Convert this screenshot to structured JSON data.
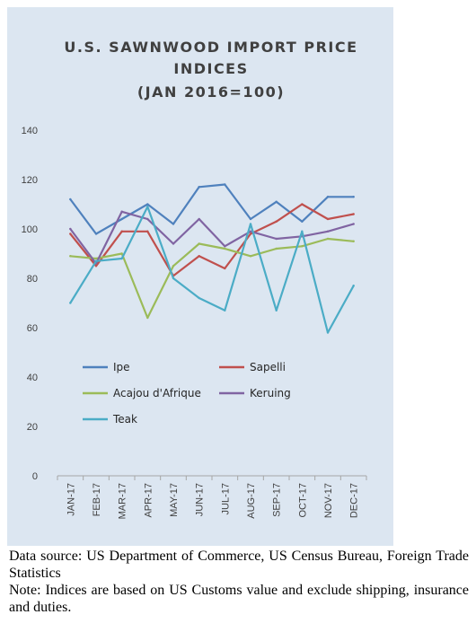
{
  "chart_data": {
    "type": "line",
    "title_lines": [
      "U.S. SAWNWOOD IMPORT PRICE",
      "INDICES",
      "(JAN 2016=100)"
    ],
    "categories": [
      "JAN-17",
      "FEB-17",
      "MAR-17",
      "APR-17",
      "MAY-17",
      "JUN-17",
      "JUL-17",
      "AUG-17",
      "SEP-17",
      "OCT-17",
      "NOV-17",
      "DEC-17"
    ],
    "ylim": [
      0,
      140
    ],
    "yticks": [
      0,
      20,
      40,
      60,
      80,
      100,
      120,
      140
    ],
    "grid": false,
    "legend_position": "lower-left inside plot",
    "series": [
      {
        "name": "Ipe",
        "color": "#4f81bd",
        "values": [
          112,
          98,
          104,
          110,
          102,
          117,
          118,
          104,
          111,
          103,
          113,
          113
        ]
      },
      {
        "name": "Sapelli",
        "color": "#c0504d",
        "values": [
          98,
          85,
          99,
          99,
          81,
          89,
          84,
          98,
          103,
          110,
          104,
          106
        ]
      },
      {
        "name": "Acajou d'Afrique",
        "color": "#9bbb59",
        "values": [
          89,
          88,
          90,
          64,
          85,
          94,
          92,
          89,
          92,
          93,
          96,
          95
        ]
      },
      {
        "name": "Keruing",
        "color": "#8064a2",
        "values": [
          100,
          86,
          107,
          104,
          94,
          104,
          93,
          99,
          96,
          97,
          99,
          102
        ]
      },
      {
        "name": "Teak",
        "color": "#4bacc6",
        "values": [
          70,
          87,
          88,
          109,
          80,
          72,
          67,
          102,
          67,
          99,
          58,
          77
        ]
      }
    ]
  },
  "notes": {
    "source": "Data source: US Department of Commerce, US Census Bureau, Foreign Trade Statistics",
    "note": "Note: Indices are based on US Customs value and exclude shipping, insurance and duties."
  }
}
